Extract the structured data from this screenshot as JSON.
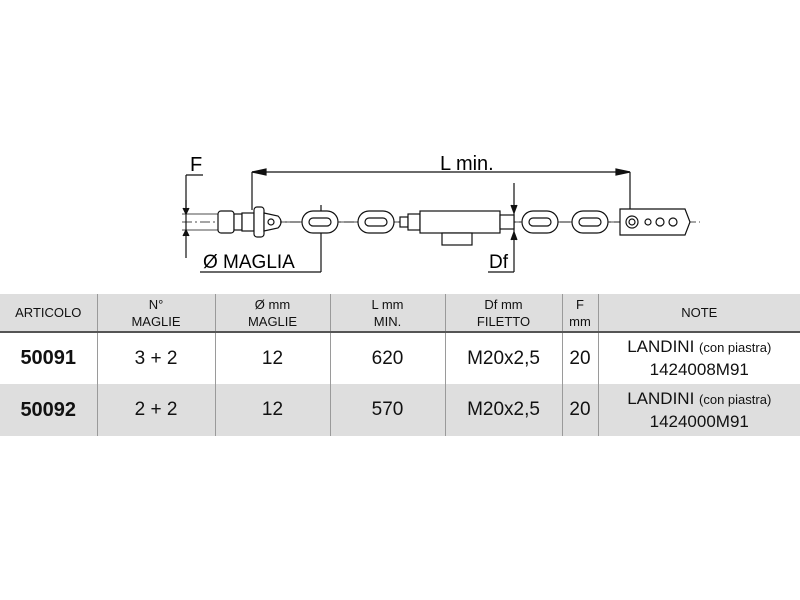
{
  "drawing": {
    "labels": {
      "f": "F",
      "l_min": "L min.",
      "diameter": "Ø MAGLIA",
      "df": "Df"
    }
  },
  "table": {
    "headers": [
      {
        "line1": "ARTICOLO",
        "line2": ""
      },
      {
        "line1": "N°",
        "line2": "MAGLIE"
      },
      {
        "line1": "Ø mm",
        "line2": "MAGLIE"
      },
      {
        "line1": "L mm",
        "line2": "MIN."
      },
      {
        "line1": "Df mm",
        "line2": "FILETTO"
      },
      {
        "line1": "F",
        "line2": "mm"
      },
      {
        "line1": "NOTE",
        "line2": ""
      }
    ],
    "rows": [
      {
        "articolo": "50091",
        "maglie": "3 + 2",
        "diametro": "12",
        "l_min": "620",
        "filetto": "M20x2,5",
        "f": "20",
        "note_brand": "LANDINI",
        "note_detail": "(con piastra)",
        "note_code": "1424008M91"
      },
      {
        "articolo": "50092",
        "maglie": "2 + 2",
        "diametro": "12",
        "l_min": "570",
        "filetto": "M20x2,5",
        "f": "20",
        "note_brand": "LANDINI",
        "note_detail": "(con piastra)",
        "note_code": "1424000M91"
      }
    ]
  }
}
